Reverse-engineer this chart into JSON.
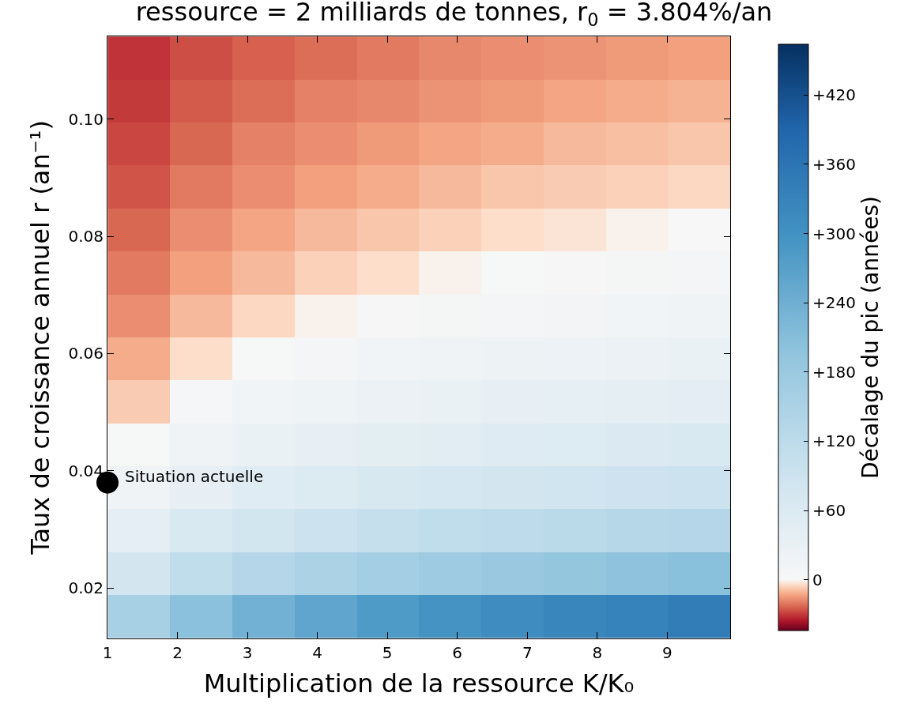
{
  "chart_data": {
    "type": "heatmap",
    "title": "ressource = 2 milliards de tonnes, r$_{0}$ = 3.804%/an",
    "xlabel": "Multiplication de la ressource K/K₀",
    "ylabel": "Taux de croissance annuel r (an⁻¹)",
    "clabel": "Décalage du pic (années)",
    "x": [
      1.45,
      2.34,
      3.23,
      4.12,
      5.01,
      5.9,
      6.79,
      7.68,
      8.57,
      9.46
    ],
    "y": [
      0.1104,
      0.1031,
      0.0957,
      0.0884,
      0.0811,
      0.0737,
      0.0664,
      0.0591,
      0.0517,
      0.0444,
      0.0371,
      0.0297,
      0.0224,
      0.0151
    ],
    "cells": [
      [
        -31,
        -27,
        -24,
        -22,
        -20,
        -18,
        -17,
        -16,
        -15,
        -14
      ],
      [
        -30,
        -25,
        -22,
        -19,
        -18,
        -16,
        -15,
        -13,
        -12,
        -11
      ],
      [
        -28,
        -23,
        -19,
        -17,
        -15,
        -13,
        -12,
        -10,
        -9,
        -8
      ],
      [
        -26,
        -20,
        -17,
        -14,
        -12,
        -10,
        -8,
        -7,
        -6,
        -5
      ],
      [
        -23,
        -17,
        -13,
        -10,
        -8,
        -6,
        -4,
        -3,
        -1,
        0
      ],
      [
        -20,
        -14,
        -10,
        -6,
        -4,
        -1,
        2,
        3,
        6,
        8
      ],
      [
        -17,
        -10,
        -5,
        -1,
        3,
        6,
        9,
        12,
        15,
        17
      ],
      [
        -12,
        -4,
        2,
        8,
        14,
        17,
        21,
        24,
        27,
        29
      ],
      [
        -7,
        5,
        14,
        20,
        26,
        30,
        35,
        39,
        42,
        45
      ],
      [
        2,
        18,
        29,
        36,
        44,
        48,
        54,
        57,
        62,
        65
      ],
      [
        17,
        36,
        50,
        59,
        68,
        74,
        80,
        84,
        89,
        93
      ],
      [
        41,
        65,
        81,
        93,
        104,
        113,
        119,
        125,
        131,
        135
      ],
      [
        80,
        113,
        134,
        150,
        164,
        174,
        183,
        192,
        200,
        206
      ],
      [
        158,
        204,
        236,
        261,
        281,
        296,
        311,
        323,
        333,
        344
      ]
    ],
    "clim": [
      -44,
      464
    ],
    "cticks": [
      {
        "value": 0,
        "label": "0"
      },
      {
        "value": 60,
        "label": "+60"
      },
      {
        "value": 120,
        "label": "+120"
      },
      {
        "value": 180,
        "label": "+180"
      },
      {
        "value": 240,
        "label": "+240"
      },
      {
        "value": 300,
        "label": "+300"
      },
      {
        "value": 360,
        "label": "+360"
      },
      {
        "value": 420,
        "label": "+420"
      }
    ],
    "xlim": [
      1,
      9.9
    ],
    "ylim": [
      0.0114,
      0.1141
    ],
    "xticks": [
      1,
      2,
      3,
      4,
      5,
      6,
      7,
      8,
      9
    ],
    "yticks": [
      0.02,
      0.04,
      0.06,
      0.08,
      {
        "value": 0.1,
        "label": "0.10"
      }
    ],
    "series": [
      {
        "type": "scatter",
        "x": [
          1
        ],
        "values": [
          0.038
        ],
        "color": "#000000"
      }
    ],
    "annotations": [
      {
        "text": "Situation actuelle",
        "x": 1,
        "y": 0.038
      }
    ]
  }
}
